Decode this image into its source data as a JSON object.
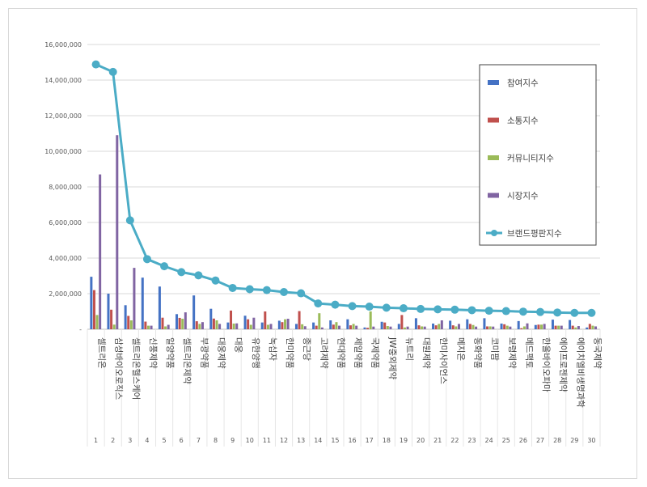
{
  "chart_data": {
    "type": "bar",
    "title": "",
    "xlabel": "",
    "ylabel": "",
    "ylim": [
      0,
      16000000
    ],
    "y_ticks": [
      "-",
      "2,000,000",
      "4,000,000",
      "6,000,000",
      "8,000,000",
      "10,000,000",
      "12,000,000",
      "14,000,000",
      "16,000,000"
    ],
    "grid": true,
    "legend_position": "top-right",
    "ranks": [
      "1",
      "2",
      "3",
      "4",
      "5",
      "6",
      "7",
      "8",
      "9",
      "10",
      "11",
      "12",
      "13",
      "14",
      "15",
      "16",
      "17",
      "18",
      "19",
      "20",
      "21",
      "22",
      "23",
      "24",
      "25",
      "26",
      "27",
      "28",
      "29",
      "30"
    ],
    "categories": [
      "셀트리온",
      "삼성바이오로직스",
      "셀트리온헬스케어",
      "신풍제약",
      "일양약품",
      "셀트리온제약",
      "부광약품",
      "대웅제약",
      "대웅",
      "유한양행",
      "녹십자",
      "한미약품",
      "종근당",
      "고려제약",
      "현대약품",
      "제일약품",
      "국제약품",
      "JW중외제약",
      "뉴트리",
      "대원제약",
      "한미사이언스",
      "메지온",
      "동화약품",
      "코미팜",
      "보령제약",
      "메드팩토",
      "한올바이오파마",
      "에이프로젠제약",
      "에이치엘비생명과학",
      "동국제약"
    ],
    "series": [
      {
        "name": "참여지수",
        "type": "bar",
        "color": "#4472c4",
        "values": [
          2950000,
          2000000,
          1350000,
          2900000,
          2400000,
          850000,
          1900000,
          1150000,
          380000,
          760000,
          380000,
          480000,
          300000,
          380000,
          500000,
          560000,
          100000,
          420000,
          300000,
          620000,
          320000,
          480000,
          560000,
          620000,
          320000,
          460000,
          240000,
          540000,
          520000,
          100000
        ]
      },
      {
        "name": "소통지수",
        "type": "bar",
        "color": "#c0504d",
        "values": [
          2200000,
          1100000,
          750000,
          430000,
          650000,
          640000,
          450000,
          600000,
          1050000,
          560000,
          1000000,
          400000,
          1020000,
          200000,
          260000,
          220000,
          80000,
          380000,
          800000,
          220000,
          220000,
          220000,
          300000,
          160000,
          280000,
          60000,
          260000,
          200000,
          200000,
          300000
        ]
      },
      {
        "name": "커뮤니티지수",
        "type": "bar",
        "color": "#9bbb59",
        "values": [
          800000,
          260000,
          500000,
          200000,
          160000,
          590000,
          300000,
          500000,
          320000,
          250000,
          250000,
          560000,
          280000,
          900000,
          400000,
          300000,
          1000000,
          180000,
          100000,
          160000,
          300000,
          160000,
          240000,
          160000,
          200000,
          160000,
          260000,
          200000,
          100000,
          200000
        ]
      },
      {
        "name": "시장지수",
        "type": "bar",
        "color": "#8064a2",
        "values": [
          8700000,
          10900000,
          3450000,
          200000,
          250000,
          950000,
          400000,
          300000,
          330000,
          650000,
          300000,
          590000,
          170000,
          100000,
          200000,
          200000,
          150000,
          150000,
          150000,
          150000,
          500000,
          300000,
          150000,
          150000,
          150000,
          330000,
          300000,
          200000,
          180000,
          160000
        ]
      },
      {
        "name": "브랜드평판지수",
        "type": "line",
        "color": "#4bacc6",
        "values": [
          14880000,
          14460000,
          6120000,
          3940000,
          3540000,
          3210000,
          3030000,
          2740000,
          2320000,
          2250000,
          2200000,
          2090000,
          2020000,
          1450000,
          1380000,
          1300000,
          1270000,
          1210000,
          1180000,
          1140000,
          1120000,
          1100000,
          1070000,
          1040000,
          1020000,
          990000,
          970000,
          940000,
          920000,
          920000
        ]
      }
    ]
  }
}
